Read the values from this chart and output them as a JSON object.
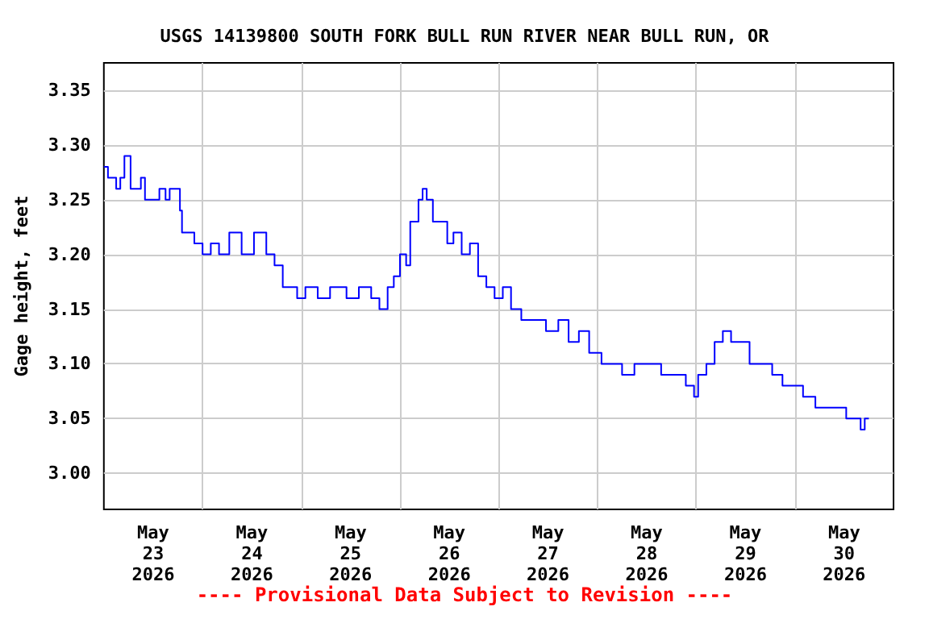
{
  "chart_data": {
    "type": "step",
    "title": "USGS 14139800 SOUTH FORK BULL RUN RIVER NEAR BULL RUN, OR",
    "ylabel": "Gage height, feet",
    "annotations": [
      "---- Provisional Data Subject to Revision ----"
    ],
    "x": [
      "2026-05-23T00:00",
      "2026-05-23T01:00",
      "2026-05-23T03:00",
      "2026-05-23T04:00",
      "2026-05-23T05:00",
      "2026-05-23T06:30",
      "2026-05-23T09:00",
      "2026-05-23T10:00",
      "2026-05-23T13:30",
      "2026-05-23T15:00",
      "2026-05-23T16:00",
      "2026-05-23T18:30",
      "2026-05-23T19:00",
      "2026-05-23T22:00",
      "2026-05-24T00:00",
      "2026-05-24T02:00",
      "2026-05-24T04:00",
      "2026-05-24T06:30",
      "2026-05-24T09:30",
      "2026-05-24T12:30",
      "2026-05-24T15:30",
      "2026-05-24T17:30",
      "2026-05-24T19:30",
      "2026-05-24T23:00",
      "2026-05-25T01:00",
      "2026-05-25T04:00",
      "2026-05-25T07:00",
      "2026-05-25T11:00",
      "2026-05-25T14:00",
      "2026-05-25T17:00",
      "2026-05-25T19:00",
      "2026-05-25T21:00",
      "2026-05-25T22:30",
      "2026-05-26T00:00",
      "2026-05-26T01:30",
      "2026-05-26T02:30",
      "2026-05-26T04:30",
      "2026-05-26T05:30",
      "2026-05-26T06:30",
      "2026-05-26T08:00",
      "2026-05-26T10:00",
      "2026-05-26T11:30",
      "2026-05-26T13:00",
      "2026-05-26T15:00",
      "2026-05-26T17:00",
      "2026-05-26T19:00",
      "2026-05-26T21:00",
      "2026-05-26T23:00",
      "2026-05-27T01:00",
      "2026-05-27T03:00",
      "2026-05-27T05:30",
      "2026-05-27T08:30",
      "2026-05-27T11:30",
      "2026-05-27T14:30",
      "2026-05-27T17:00",
      "2026-05-27T19:30",
      "2026-05-27T22:00",
      "2026-05-28T01:00",
      "2026-05-28T04:00",
      "2026-05-28T06:00",
      "2026-05-28T09:00",
      "2026-05-28T12:00",
      "2026-05-28T15:30",
      "2026-05-28T18:30",
      "2026-05-28T21:30",
      "2026-05-28T23:30",
      "2026-05-29T00:30",
      "2026-05-29T02:30",
      "2026-05-29T04:30",
      "2026-05-29T06:30",
      "2026-05-29T08:30",
      "2026-05-29T10:30",
      "2026-05-29T13:00",
      "2026-05-29T16:00",
      "2026-05-29T18:30",
      "2026-05-29T21:00",
      "2026-05-29T23:30",
      "2026-05-30T02:00",
      "2026-05-30T05:00",
      "2026-05-30T07:30",
      "2026-05-30T10:00",
      "2026-05-30T12:30",
      "2026-05-30T14:30",
      "2026-05-30T16:00",
      "2026-05-30T17:00",
      "2026-05-30T18:00"
    ],
    "series": [
      {
        "color": "#0000ff",
        "values": [
          3.28,
          3.27,
          3.26,
          3.27,
          3.29,
          3.26,
          3.27,
          3.25,
          3.26,
          3.25,
          3.26,
          3.24,
          3.22,
          3.21,
          3.2,
          3.21,
          3.2,
          3.22,
          3.2,
          3.22,
          3.2,
          3.19,
          3.17,
          3.16,
          3.17,
          3.16,
          3.17,
          3.16,
          3.17,
          3.16,
          3.15,
          3.17,
          3.18,
          3.2,
          3.19,
          3.23,
          3.25,
          3.26,
          3.25,
          3.23,
          3.23,
          3.21,
          3.22,
          3.2,
          3.21,
          3.18,
          3.17,
          3.16,
          3.17,
          3.15,
          3.14,
          3.14,
          3.13,
          3.14,
          3.12,
          3.13,
          3.11,
          3.1,
          3.1,
          3.09,
          3.1,
          3.1,
          3.09,
          3.09,
          3.08,
          3.07,
          3.09,
          3.1,
          3.12,
          3.13,
          3.12,
          3.12,
          3.1,
          3.1,
          3.09,
          3.08,
          3.08,
          3.07,
          3.06,
          3.06,
          3.06,
          3.05,
          3.05,
          3.04,
          3.05,
          3.05
        ]
      }
    ],
    "xlim": [
      "2026-05-23T00:00",
      "2026-05-31T00:00"
    ],
    "xticks": [
      {
        "value": "2026-05-23T12:00",
        "label": "May\n23\n2026"
      },
      {
        "value": "2026-05-24T12:00",
        "label": "May\n24\n2026"
      },
      {
        "value": "2026-05-25T12:00",
        "label": "May\n25\n2026"
      },
      {
        "value": "2026-05-26T12:00",
        "label": "May\n26\n2026"
      },
      {
        "value": "2026-05-27T12:00",
        "label": "May\n27\n2026"
      },
      {
        "value": "2026-05-28T12:00",
        "label": "May\n28\n2026"
      },
      {
        "value": "2026-05-29T12:00",
        "label": "May\n29\n2026"
      },
      {
        "value": "2026-05-30T12:00",
        "label": "May\n30\n2026"
      },
      {
        "value": "2026-05-24T00:00",
        "label": null
      },
      {
        "value": "2026-05-25T00:00",
        "label": null
      },
      {
        "value": "2026-05-26T00:00",
        "label": null
      },
      {
        "value": "2026-05-27T00:00",
        "label": null
      },
      {
        "value": "2026-05-28T00:00",
        "label": null
      },
      {
        "value": "2026-05-29T00:00",
        "label": null
      },
      {
        "value": "2026-05-30T00:00",
        "label": null
      }
    ],
    "ylim": [
      2.967,
      3.375
    ],
    "yticks": [
      {
        "value": 3.0,
        "label": "3.00"
      },
      {
        "value": 3.05,
        "label": "3.05"
      },
      {
        "value": 3.1,
        "label": "3.10"
      },
      {
        "value": 3.15,
        "label": "3.15"
      },
      {
        "value": 3.2,
        "label": "3.20"
      },
      {
        "value": 3.25,
        "label": "3.25"
      },
      {
        "value": 3.3,
        "label": "3.30"
      },
      {
        "value": 3.35,
        "label": "3.35"
      }
    ],
    "grid": true,
    "marker": "none",
    "line_style": "solid"
  }
}
